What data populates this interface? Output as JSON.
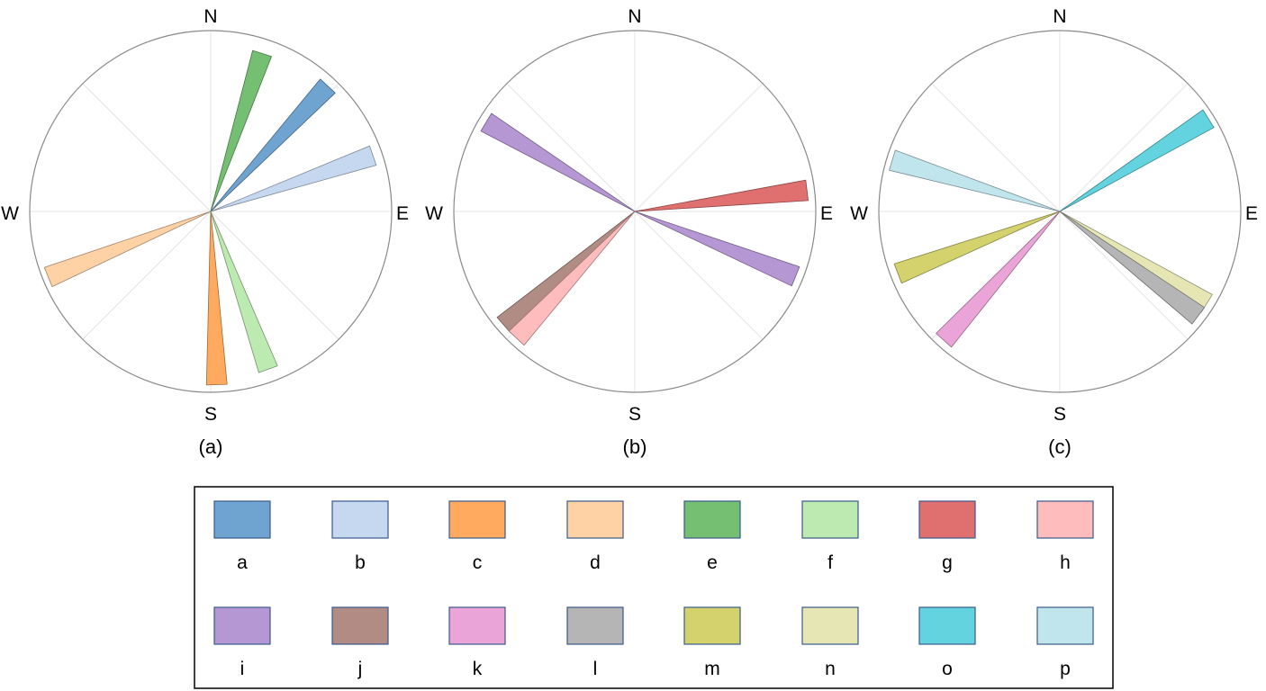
{
  "chart_data": [
    {
      "type": "polar-bar",
      "caption": "(a)",
      "directions": {
        "n": "N",
        "e": "E",
        "s": "S",
        "w": "W"
      },
      "bars": [
        {
          "key": "e",
          "direction_deg": 18,
          "magnitude": 0.92
        },
        {
          "key": "a",
          "direction_deg": 43,
          "magnitude": 0.95
        },
        {
          "key": "b",
          "direction_deg": 71,
          "magnitude": 0.95
        },
        {
          "key": "d",
          "direction_deg": 248,
          "magnitude": 0.97
        },
        {
          "key": "c",
          "direction_deg": 178,
          "magnitude": 0.96
        },
        {
          "key": "f",
          "direction_deg": 160,
          "magnitude": 0.93
        }
      ]
    },
    {
      "type": "polar-bar",
      "caption": "(b)",
      "directions": {
        "n": "N",
        "e": "E",
        "s": "S",
        "w": "W"
      },
      "bars": [
        {
          "key": "i",
          "direction_deg": 301,
          "magnitude": 0.96
        },
        {
          "key": "g",
          "direction_deg": 83,
          "magnitude": 0.96
        },
        {
          "key": "i",
          "direction_deg": 112,
          "magnitude": 0.96
        },
        {
          "key": "j",
          "direction_deg": 229,
          "magnitude": 0.96
        },
        {
          "key": "h",
          "direction_deg": 223,
          "magnitude": 0.96
        }
      ]
    },
    {
      "type": "polar-bar",
      "caption": "(c)",
      "directions": {
        "n": "N",
        "e": "E",
        "s": "S",
        "w": "W"
      },
      "bars": [
        {
          "key": "o",
          "direction_deg": 58,
          "magnitude": 0.97
        },
        {
          "key": "p",
          "direction_deg": 287,
          "magnitude": 0.97
        },
        {
          "key": "m",
          "direction_deg": 249,
          "magnitude": 0.96
        },
        {
          "key": "k",
          "direction_deg": 222,
          "magnitude": 0.96
        },
        {
          "key": "n",
          "direction_deg": 122,
          "magnitude": 0.96
        },
        {
          "key": "l",
          "direction_deg": 127,
          "magnitude": 0.96
        }
      ]
    }
  ],
  "legend": [
    {
      "key": "a",
      "label": "a",
      "color": "#6fa3d0"
    },
    {
      "key": "b",
      "label": "b",
      "color": "#c5d8ef"
    },
    {
      "key": "c",
      "label": "c",
      "color": "#ffaa5e"
    },
    {
      "key": "d",
      "label": "d",
      "color": "#ffd2a6"
    },
    {
      "key": "e",
      "label": "e",
      "color": "#74bf72"
    },
    {
      "key": "f",
      "label": "f",
      "color": "#bceab0"
    },
    {
      "key": "g",
      "label": "g",
      "color": "#e06f6f"
    },
    {
      "key": "h",
      "label": "h",
      "color": "#ffbcbc"
    },
    {
      "key": "i",
      "label": "i",
      "color": "#b597d3"
    },
    {
      "key": "j",
      "label": "j",
      "color": "#b08c84"
    },
    {
      "key": "k",
      "label": "k",
      "color": "#eba4d8"
    },
    {
      "key": "l",
      "label": "l",
      "color": "#b5b5b5"
    },
    {
      "key": "m",
      "label": "m",
      "color": "#d3d26d"
    },
    {
      "key": "n",
      "label": "n",
      "color": "#e6e6b4"
    },
    {
      "key": "o",
      "label": "o",
      "color": "#62d3df"
    },
    {
      "key": "p",
      "label": "p",
      "color": "#c1e5ec"
    }
  ]
}
